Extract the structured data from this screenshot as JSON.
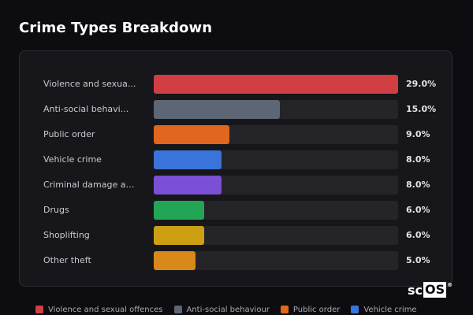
{
  "header": {
    "title": "Crime Types Breakdown"
  },
  "watermark": {
    "prefix": "sc",
    "boxed": "OS",
    "mark": "®"
  },
  "chart_data": {
    "type": "bar",
    "orientation": "horizontal",
    "title": "Crime Types Breakdown",
    "xlim": [
      0,
      29
    ],
    "grid": false,
    "legend_position": "bottom",
    "categories": [
      "Violence and sexua...",
      "Anti-social behavi...",
      "Public order",
      "Vehicle crime",
      "Criminal damage an...",
      "Drugs",
      "Shoplifting",
      "Other theft"
    ],
    "values": [
      29.0,
      15.0,
      9.0,
      8.0,
      8.0,
      6.0,
      6.0,
      5.0
    ],
    "value_labels": [
      "29.0%",
      "15.0%",
      "9.0%",
      "8.0%",
      "8.0%",
      "6.0%",
      "6.0%",
      "5.0%"
    ],
    "colors": [
      "#d13f43",
      "#5d6675",
      "#e0671d",
      "#3a74da",
      "#7b4fd6",
      "#22a655",
      "#cda014",
      "#d8891a"
    ],
    "legend": [
      {
        "label": "Violence and sexual offences",
        "color": "#d13f43"
      },
      {
        "label": "Anti-social behaviour",
        "color": "#5d6675"
      },
      {
        "label": "Public order",
        "color": "#e0671d"
      },
      {
        "label": "Vehicle crime",
        "color": "#3a74da"
      }
    ]
  }
}
